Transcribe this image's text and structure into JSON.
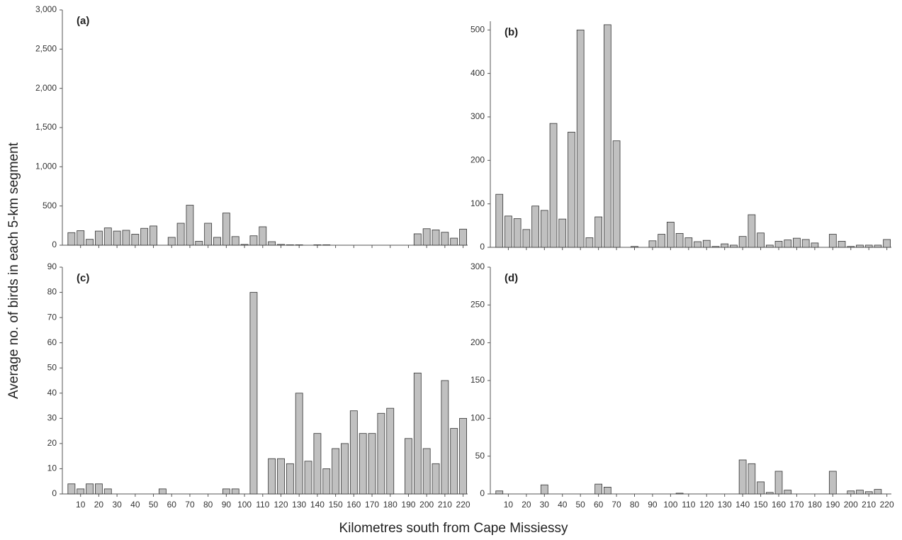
{
  "ylabel": "Average no. of birds in each 5-km segment",
  "xlabel": "Kilometres south from Cape Missiessy",
  "chart_data": [
    {
      "type": "bar",
      "title": "(a)",
      "color": "#c0c0c0",
      "x": [
        5,
        10,
        15,
        20,
        25,
        30,
        35,
        40,
        45,
        50,
        55,
        60,
        65,
        70,
        75,
        80,
        85,
        90,
        95,
        100,
        105,
        110,
        115,
        120,
        125,
        130,
        135,
        140,
        145,
        150,
        155,
        160,
        165,
        170,
        175,
        180,
        185,
        190,
        195,
        200,
        205,
        210,
        215,
        220
      ],
      "values": [
        160,
        185,
        75,
        180,
        220,
        180,
        190,
        140,
        215,
        245,
        0,
        100,
        280,
        510,
        50,
        280,
        100,
        410,
        110,
        10,
        120,
        235,
        45,
        10,
        5,
        5,
        0,
        5,
        5,
        0,
        0,
        0,
        0,
        0,
        0,
        0,
        0,
        0,
        145,
        210,
        195,
        165,
        90,
        205
      ],
      "xlim": [
        0,
        222.5
      ],
      "xticks": [
        10,
        20,
        30,
        40,
        50,
        60,
        70,
        80,
        90,
        100,
        110,
        120,
        130,
        140,
        150,
        160,
        170,
        180,
        190,
        200,
        210,
        220
      ],
      "show_xtick_labels": false,
      "ylim": [
        0,
        3000
      ],
      "yticks": [
        0,
        500,
        {
          "value": 1000,
          "label": "1,000"
        },
        {
          "value": 1500,
          "label": "1,500"
        },
        {
          "value": 2000,
          "label": "2,000"
        },
        {
          "value": 2500,
          "label": "2,500"
        },
        {
          "value": 3000,
          "label": "3,000"
        }
      ]
    },
    {
      "type": "bar",
      "title": "(b)",
      "color": "#c0c0c0",
      "x": [
        5,
        10,
        15,
        20,
        25,
        30,
        35,
        40,
        45,
        50,
        55,
        60,
        65,
        70,
        75,
        80,
        85,
        90,
        95,
        100,
        105,
        110,
        115,
        120,
        125,
        130,
        135,
        140,
        145,
        150,
        155,
        160,
        165,
        170,
        175,
        180,
        185,
        190,
        195,
        200,
        205,
        210,
        215,
        220
      ],
      "values": [
        122,
        72,
        66,
        41,
        95,
        85,
        285,
        65,
        265,
        500,
        22,
        70,
        512,
        245,
        0,
        2,
        0,
        15,
        30,
        58,
        32,
        22,
        13,
        16,
        2,
        8,
        5,
        25,
        75,
        33,
        5,
        14,
        17,
        21,
        18,
        10,
        0,
        30,
        14,
        2,
        5,
        5,
        5,
        18
      ],
      "xlim": [
        0,
        222.5
      ],
      "xticks": [
        10,
        20,
        30,
        40,
        50,
        60,
        70,
        80,
        90,
        100,
        110,
        120,
        130,
        140,
        150,
        160,
        170,
        180,
        190,
        200,
        210,
        220
      ],
      "show_xtick_labels": false,
      "ylim": [
        0,
        520
      ],
      "yticks": [
        0,
        100,
        200,
        300,
        400,
        500
      ]
    },
    {
      "type": "bar",
      "title": "(c)",
      "color": "#c0c0c0",
      "x": [
        5,
        10,
        15,
        20,
        25,
        30,
        35,
        40,
        45,
        50,
        55,
        60,
        65,
        70,
        75,
        80,
        85,
        90,
        95,
        100,
        105,
        110,
        115,
        120,
        125,
        130,
        135,
        140,
        145,
        150,
        155,
        160,
        165,
        170,
        175,
        180,
        185,
        190,
        195,
        200,
        205,
        210,
        215,
        220
      ],
      "values": [
        4,
        2,
        4,
        4,
        2,
        0,
        0,
        0,
        0,
        0,
        2,
        0,
        0,
        0,
        0,
        0,
        0,
        2,
        2,
        0,
        80,
        0,
        14,
        14,
        12,
        40,
        13,
        24,
        10,
        18,
        20,
        33,
        24,
        24,
        32,
        34,
        0,
        22,
        48,
        18,
        12,
        45,
        26,
        30
      ],
      "xlim": [
        0,
        222.5
      ],
      "xticks": [
        10,
        20,
        30,
        40,
        50,
        60,
        70,
        80,
        90,
        100,
        110,
        120,
        130,
        140,
        150,
        160,
        170,
        180,
        190,
        200,
        210,
        220
      ],
      "show_xtick_labels": true,
      "ylim": [
        0,
        90
      ],
      "yticks": [
        0,
        10,
        20,
        30,
        40,
        50,
        60,
        70,
        80,
        90
      ]
    },
    {
      "type": "bar",
      "title": "(d)",
      "color": "#c0c0c0",
      "x": [
        5,
        10,
        15,
        20,
        25,
        30,
        35,
        40,
        45,
        50,
        55,
        60,
        65,
        70,
        75,
        80,
        85,
        90,
        95,
        100,
        105,
        110,
        115,
        120,
        125,
        130,
        135,
        140,
        145,
        150,
        155,
        160,
        165,
        170,
        175,
        180,
        185,
        190,
        195,
        200,
        205,
        210,
        215,
        220
      ],
      "values": [
        4,
        0,
        0,
        0,
        0,
        12,
        0,
        0,
        0,
        0,
        0,
        13,
        9,
        0,
        0,
        0,
        0,
        0,
        0,
        0,
        1,
        0,
        0,
        0,
        0,
        0,
        0,
        45,
        40,
        16,
        2,
        30,
        5,
        0,
        0,
        0,
        0,
        30,
        0,
        4,
        5,
        3,
        6,
        0
      ],
      "xlim": [
        0,
        222.5
      ],
      "xticks": [
        10,
        20,
        30,
        40,
        50,
        60,
        70,
        80,
        90,
        100,
        110,
        120,
        130,
        140,
        150,
        160,
        170,
        180,
        190,
        200,
        210,
        220
      ],
      "show_xtick_labels": true,
      "ylim": [
        0,
        300
      ],
      "yticks": [
        0,
        50,
        100,
        150,
        200,
        250,
        300
      ]
    }
  ]
}
